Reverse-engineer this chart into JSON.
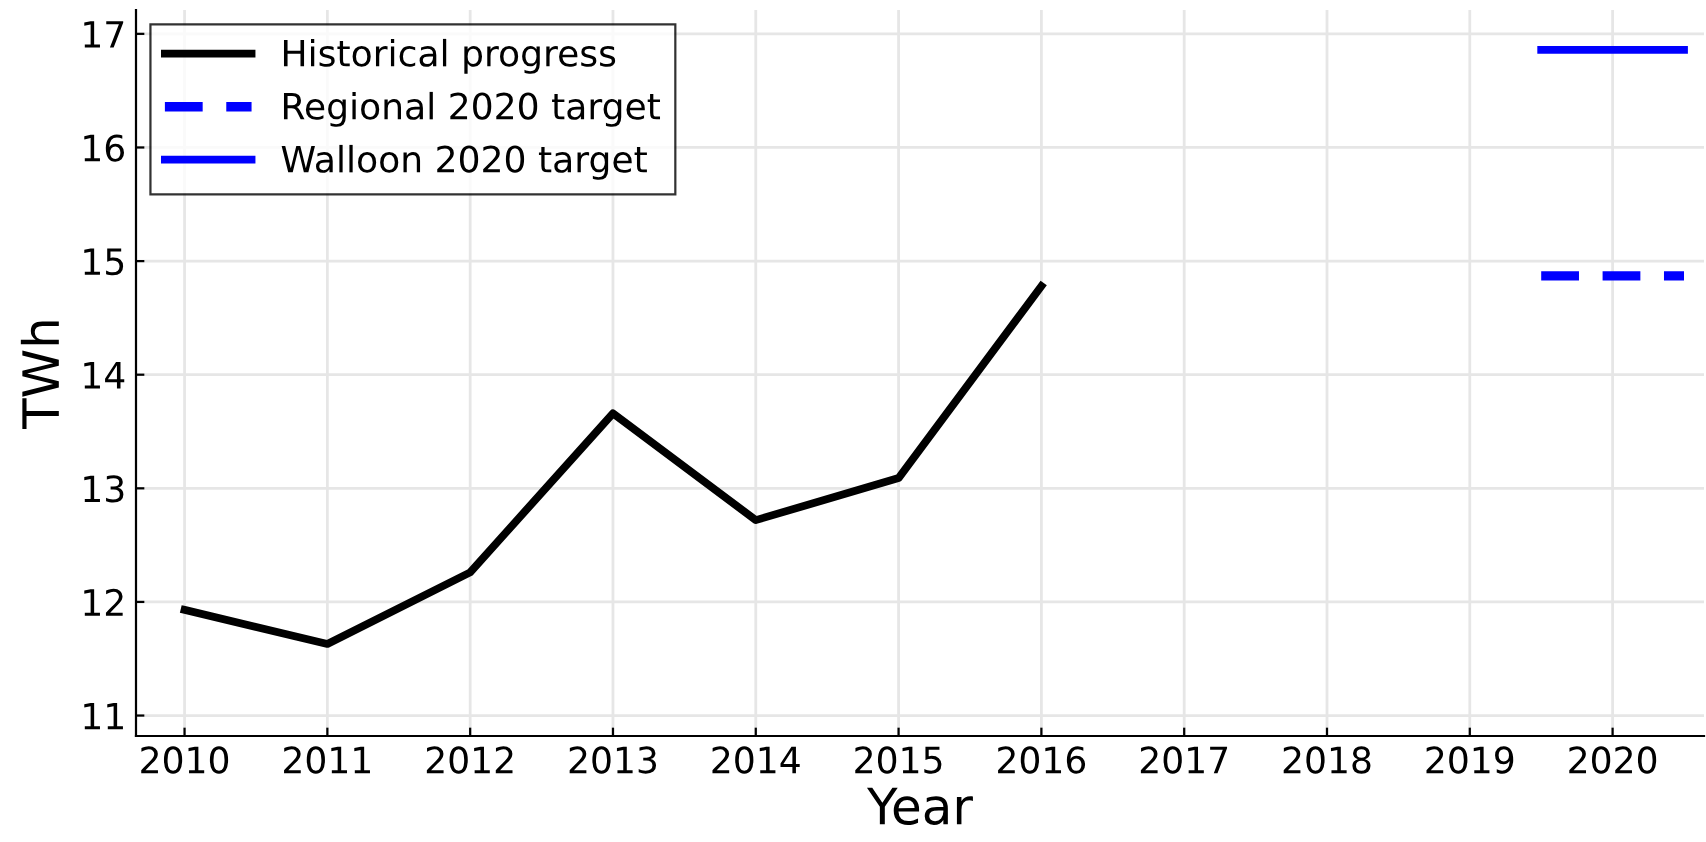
{
  "chart_data": {
    "type": "line",
    "xlabel": "Year",
    "ylabel": "TWh",
    "series": [
      {
        "name": "Historical progress",
        "color": "#000000",
        "x": [
          2010,
          2011,
          2012,
          2013,
          2014,
          2015,
          2016
        ],
        "values": [
          11.93,
          11.63,
          12.26,
          13.66,
          12.72,
          13.09,
          14.78
        ],
        "line_style": "solid"
      },
      {
        "name": "Regional 2020 target",
        "color": "#0000ff",
        "x": [
          2019.5,
          2020.5
        ],
        "values": [
          14.87,
          14.87
        ],
        "line_style": "dashed"
      },
      {
        "name": "Walloon 2020 target",
        "color": "#0000ff",
        "x": [
          2019.5,
          2020.5
        ],
        "values": [
          16.86,
          16.86
        ],
        "line_style": "solid"
      }
    ],
    "xlim": [
      2009.66,
      2020.64
    ],
    "ylim": [
      10.82,
      17.21
    ],
    "xticks": [
      2010,
      2011,
      2012,
      2013,
      2014,
      2015,
      2016,
      2017,
      2018,
      2019,
      2020
    ],
    "yticks": [
      11,
      12,
      13,
      14,
      15,
      16,
      17
    ],
    "grid": true,
    "legend": "top left",
    "marker": "none"
  }
}
